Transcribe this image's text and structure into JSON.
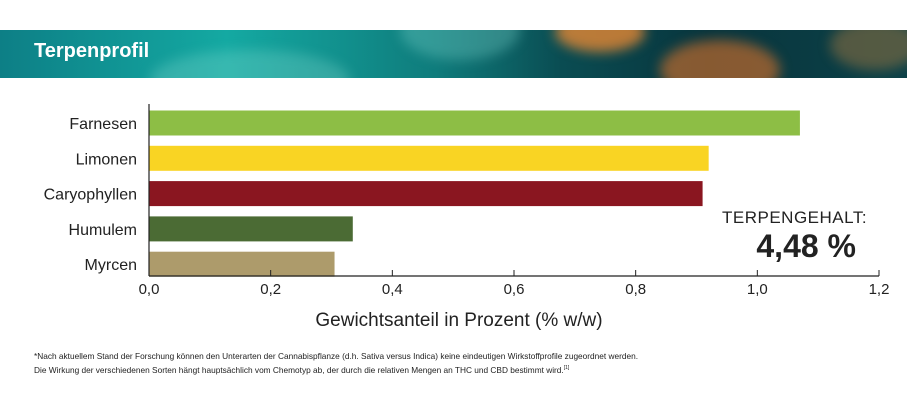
{
  "header": {
    "title": "Terpenprofil"
  },
  "chart_data": {
    "type": "bar",
    "orientation": "horizontal",
    "categories": [
      "Farnesen",
      "Limonen",
      "Caryophyllen",
      "Humulem",
      "Myrcen"
    ],
    "values": [
      1.07,
      0.92,
      0.91,
      0.335,
      0.305
    ],
    "colors": [
      "#8dbe45",
      "#f9d423",
      "#8a1620",
      "#4b6b34",
      "#ad9b6b"
    ],
    "xlabel": "Gewichtsanteil in Prozent (% w/w)",
    "ylabel": "",
    "xlim": [
      0,
      1.2
    ],
    "ticks": [
      "0,0",
      "0,2",
      "0,4",
      "0,6",
      "0,8",
      "1,0",
      "1,2"
    ],
    "tick_values": [
      0,
      0.2,
      0.4,
      0.6,
      0.8,
      1.0,
      1.2
    ],
    "grid": false
  },
  "summary": {
    "label": "TERPENGEHALT:",
    "value": "4,48 %"
  },
  "footnote": {
    "line1": "*Nach aktuellem Stand der Forschung können den Unterarten der Cannabispflanze (d.h. Sativa versus Indica) keine eindeutigen Wirkstoffprofile zugeordnet werden.",
    "line2": "Die Wirkung der verschiedenen Sorten hängt hauptsächlich vom Chemotyp ab, der durch die relativen Mengen an THC und CBD bestimmt wird.",
    "ref": "[1]"
  }
}
